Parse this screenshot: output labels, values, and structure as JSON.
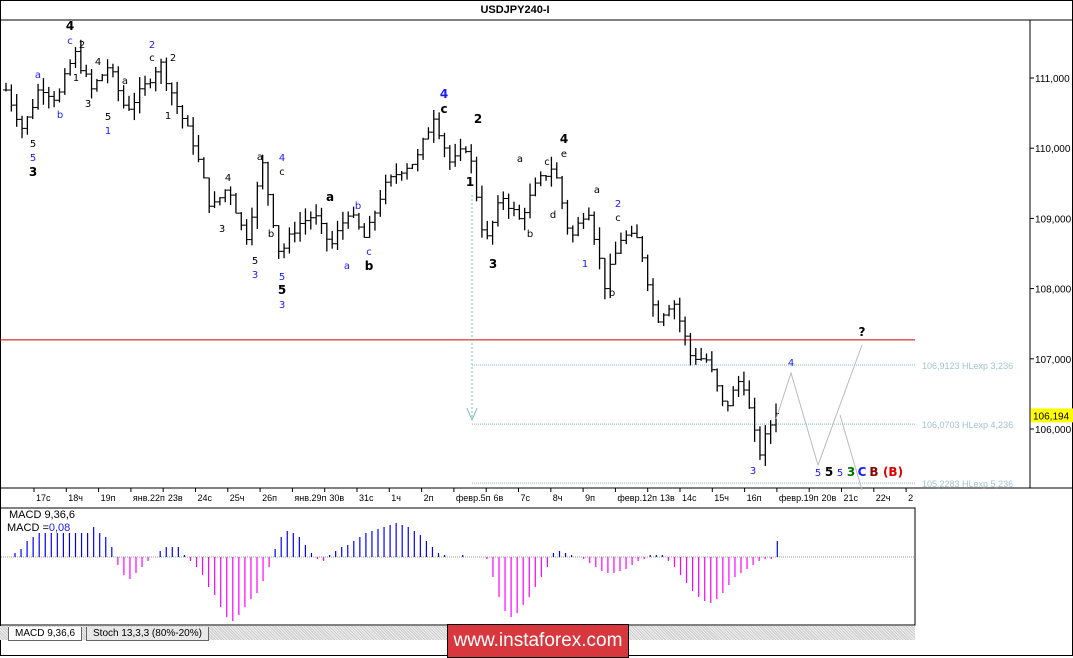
{
  "title": "USDJPY240-I",
  "current_price": "106,194",
  "colors": {
    "bars": "#000000",
    "macd_pos": "#0000ff",
    "macd_neg": "#ff00ff",
    "resistance": "#d00000",
    "fib": "#7fbfbf",
    "projection": "#bbbbbb",
    "price_tag": "#ffff00",
    "logo": "#d7373d"
  },
  "chart_data": [
    {
      "type": "ohlc",
      "title": "USDJPY240-I",
      "y_ticks": [
        "111,000",
        "110,000",
        "109,000",
        "108,000",
        "107,000",
        "106,000"
      ],
      "ylim": [
        105.1,
        111.8
      ],
      "x_ticks": [
        "17с",
        "18ч",
        "19п",
        "янв.22п",
        "23в",
        "24с",
        "25ч",
        "26п",
        "янв.29п",
        "30в",
        "31с",
        "1ч",
        "2п",
        "февр.5п",
        "6в",
        "7с",
        "8ч",
        "9п",
        "февр.12п",
        "13в",
        "14с",
        "15ч",
        "16п",
        "февр.19п",
        "20в",
        "21с",
        "22ч",
        "2"
      ],
      "price_path": [
        110.83,
        110.26,
        110.9,
        110.69,
        111.37,
        110.83,
        111.18,
        110.54,
        110.83,
        111.23,
        110.6,
        110.05,
        109.12,
        109.47,
        108.69,
        109.76,
        108.48,
        108.9,
        109.05,
        108.6,
        109.1,
        108.7,
        109.4,
        109.69,
        109.83,
        110.47,
        109.76,
        110.05,
        108.62,
        109.33,
        108.98,
        109.48,
        109.76,
        108.69,
        109.19,
        108.05,
        108.76,
        108.69,
        107.55,
        107.84,
        107.05,
        106.98,
        106.27,
        106.77,
        105.63,
        106.27
      ],
      "resistance_level": 107.27,
      "fib_levels": [
        {
          "price": 106.9123,
          "label": "106,9123 HLexp 3,236"
        },
        {
          "price": 106.0703,
          "label": "106,0703 HLexp 4,236"
        },
        {
          "price": 105.2283,
          "label": "105,2283 HLexp 5,236"
        }
      ],
      "wave_labels": [
        {
          "t": "4",
          "c": "#000"
        },
        {
          "t": "c",
          "c": "#1a1aff"
        },
        {
          "t": "2",
          "c": "#000"
        },
        {
          "t": "1",
          "c": "#000"
        },
        {
          "t": "3",
          "c": "#000"
        },
        {
          "t": "4",
          "c": "#000"
        },
        {
          "t": "a",
          "c": "#1a1aff"
        },
        {
          "t": "b",
          "c": "#1a1aff"
        },
        {
          "t": "5",
          "c": "#000"
        },
        {
          "t": "5",
          "c": "#1a1aff"
        },
        {
          "t": "3",
          "c": "#000"
        },
        {
          "t": "a",
          "c": "#000"
        },
        {
          "t": "5",
          "c": "#000"
        },
        {
          "t": "1",
          "c": "#1a1aff"
        },
        {
          "t": "2",
          "c": "#1a1aff"
        },
        {
          "t": "c",
          "c": "#000"
        },
        {
          "t": "2",
          "c": "#000"
        },
        {
          "t": "1",
          "c": "#000"
        },
        {
          "t": "4",
          "c": "#000"
        },
        {
          "t": "3",
          "c": "#000"
        },
        {
          "t": "a",
          "c": "#000"
        },
        {
          "t": "4",
          "c": "#1a1aff"
        },
        {
          "t": "c",
          "c": "#000"
        },
        {
          "t": "b",
          "c": "#000"
        },
        {
          "t": "5",
          "c": "#000"
        },
        {
          "t": "3",
          "c": "#1a1aff"
        },
        {
          "t": "5",
          "c": "#1a1aff"
        },
        {
          "t": "5",
          "c": "#000"
        },
        {
          "t": "3",
          "c": "#1a1aff"
        },
        {
          "t": "a",
          "c": "#000"
        },
        {
          "t": "b",
          "c": "#1a1aff"
        },
        {
          "t": "c",
          "c": "#1a1aff"
        },
        {
          "t": "b",
          "c": "#000"
        },
        {
          "t": "a",
          "c": "#1a1aff"
        },
        {
          "t": "4",
          "c": "#1a1aff"
        },
        {
          "t": "c",
          "c": "#000"
        },
        {
          "t": "2",
          "c": "#000"
        },
        {
          "t": "1",
          "c": "#000"
        },
        {
          "t": "3",
          "c": "#000"
        },
        {
          "t": "a",
          "c": "#000"
        },
        {
          "t": "c",
          "c": "#000"
        },
        {
          "t": "4",
          "c": "#000"
        },
        {
          "t": "e",
          "c": "#000"
        },
        {
          "t": "b",
          "c": "#000"
        },
        {
          "t": "d",
          "c": "#000"
        },
        {
          "t": "a",
          "c": "#000"
        },
        {
          "t": "2",
          "c": "#1a1aff"
        },
        {
          "t": "c",
          "c": "#000"
        },
        {
          "t": "1",
          "c": "#1a1aff"
        },
        {
          "t": "b",
          "c": "#000"
        },
        {
          "t": "4",
          "c": "#1a1aff"
        },
        {
          "t": "3",
          "c": "#1a1aff"
        },
        {
          "t": "?",
          "c": "#000"
        },
        {
          "t": "5",
          "c": "#1a1aff"
        },
        {
          "t": "5",
          "c": "#000"
        },
        {
          "t": "5",
          "c": "#1a1aff"
        },
        {
          "t": "3",
          "c": "#007000"
        },
        {
          "t": "C",
          "c": "#1a1aff"
        },
        {
          "t": "B",
          "c": "#8b0000"
        },
        {
          "t": "(B)",
          "c": "#e00000"
        }
      ]
    },
    {
      "type": "bar",
      "title": "MACD 9,36,6",
      "value_label": "MACD =",
      "value": "0,08",
      "values": [
        0.02,
        0.04,
        0.08,
        0.1,
        0.12,
        0.12,
        0.12,
        0.12,
        0.12,
        0.12,
        0.12,
        0.12,
        0.12,
        0.15,
        0.12,
        0.1,
        0.05,
        -0.04,
        -0.09,
        -0.11,
        -0.08,
        -0.05,
        -0.02,
        0,
        0.03,
        0.05,
        0.05,
        0.05,
        0.01,
        -0.02,
        -0.05,
        -0.09,
        -0.15,
        -0.19,
        -0.25,
        -0.3,
        -0.32,
        -0.29,
        -0.25,
        -0.21,
        -0.18,
        -0.12,
        -0.05,
        0.04,
        0.1,
        0.13,
        0.12,
        0.1,
        0.06,
        0.02,
        -0.01,
        -0.02,
        0.01,
        0.03,
        0.05,
        0.06,
        0.08,
        0.1,
        0.12,
        0.13,
        0.14,
        0.15,
        0.16,
        0.17,
        0.16,
        0.15,
        0.13,
        0.11,
        0.08,
        0.05,
        0.02,
        0.01,
        0,
        0,
        0.01,
        0,
        0,
        0,
        -0.01,
        -0.1,
        -0.2,
        -0.27,
        -0.3,
        -0.28,
        -0.24,
        -0.2,
        -0.15,
        -0.1,
        -0.05,
        0.02,
        0.03,
        0.02,
        0.01,
        0,
        -0.01,
        -0.03,
        -0.05,
        -0.07,
        -0.08,
        -0.08,
        -0.07,
        -0.06,
        -0.04,
        -0.02,
        -0.01,
        0.01,
        0.01,
        0.01,
        -0.02,
        -0.05,
        -0.09,
        -0.13,
        -0.17,
        -0.2,
        -0.22,
        -0.23,
        -0.21,
        -0.18,
        -0.14,
        -0.1,
        -0.08,
        -0.06,
        -0.04,
        -0.02,
        -0.01,
        -0.01,
        0.08
      ]
    }
  ],
  "tabs": [
    {
      "label": "MACD 9,36,6"
    },
    {
      "label": "Stoch 13,3,3 (80%-20%)"
    }
  ],
  "logo": "www.instaforex.com"
}
